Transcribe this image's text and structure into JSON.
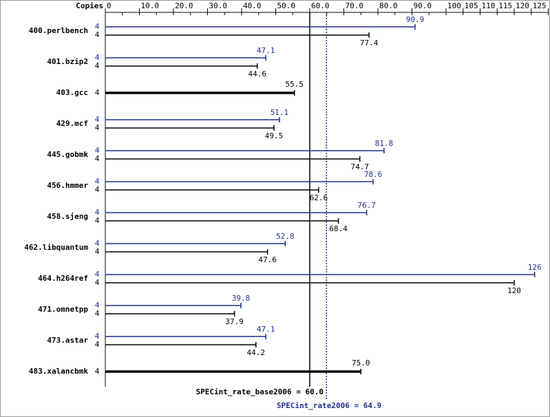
{
  "chart_data": {
    "type": "spec-bar",
    "axis_title": "Copies",
    "categories": [
      "400.perlbench",
      "401.bzip2",
      "403.gcc",
      "429.mcf",
      "445.gobmk",
      "456.hmmer",
      "458.sjeng",
      "462.libquantum",
      "464.h264ref",
      "471.omnetpp",
      "473.astar",
      "483.xalancbmk"
    ],
    "series": [
      {
        "color": "#1f2f8f",
        "values": [
          90.9,
          47.1,
          null,
          51.1,
          81.8,
          78.6,
          76.7,
          52.8,
          126,
          39.8,
          47.1,
          null
        ],
        "copies": [
          4,
          4,
          null,
          4,
          4,
          4,
          4,
          4,
          4,
          4,
          4,
          null
        ]
      },
      {
        "color": "#000000",
        "values": [
          77.4,
          44.6,
          55.5,
          49.5,
          74.7,
          62.6,
          68.4,
          47.6,
          120,
          37.9,
          44.2,
          75
        ],
        "value_labels": [
          "77.4",
          "44.6",
          "55.5",
          "49.5",
          "74.7",
          "62.6",
          "68.4",
          "47.6",
          "120",
          "37.9",
          "44.2",
          "75.0"
        ],
        "copies": [
          4,
          4,
          4,
          4,
          4,
          4,
          4,
          4,
          4,
          4,
          4,
          4
        ]
      }
    ],
    "xlim": [
      0,
      130
    ],
    "xticks": [
      0,
      {
        "value": 10,
        "label": "10.0"
      },
      {
        "value": 20,
        "label": "20.0"
      },
      {
        "value": 30,
        "label": "30.0"
      },
      {
        "value": 40,
        "label": "40.0"
      },
      {
        "value": 50,
        "label": "50.0"
      },
      {
        "value": 60,
        "label": "60.0"
      },
      {
        "value": 70,
        "label": "70.0"
      },
      {
        "value": 80,
        "label": "80.0"
      },
      {
        "value": 90,
        "label": "90.0"
      },
      100,
      105,
      110,
      115,
      120,
      125,
      130
    ],
    "x_minor_ticks": [
      5,
      15,
      25,
      35,
      45,
      55,
      65,
      75,
      85,
      95
    ],
    "reference_lines": [
      {
        "label": "SPECint_rate_base2006 = 60.0",
        "value": 60,
        "color": "#000000",
        "style": "solid"
      },
      {
        "label": "SPECint_rate2006 = 64.9",
        "value": 64.9,
        "color": "#1f2f8f",
        "style": "dotted"
      }
    ]
  }
}
